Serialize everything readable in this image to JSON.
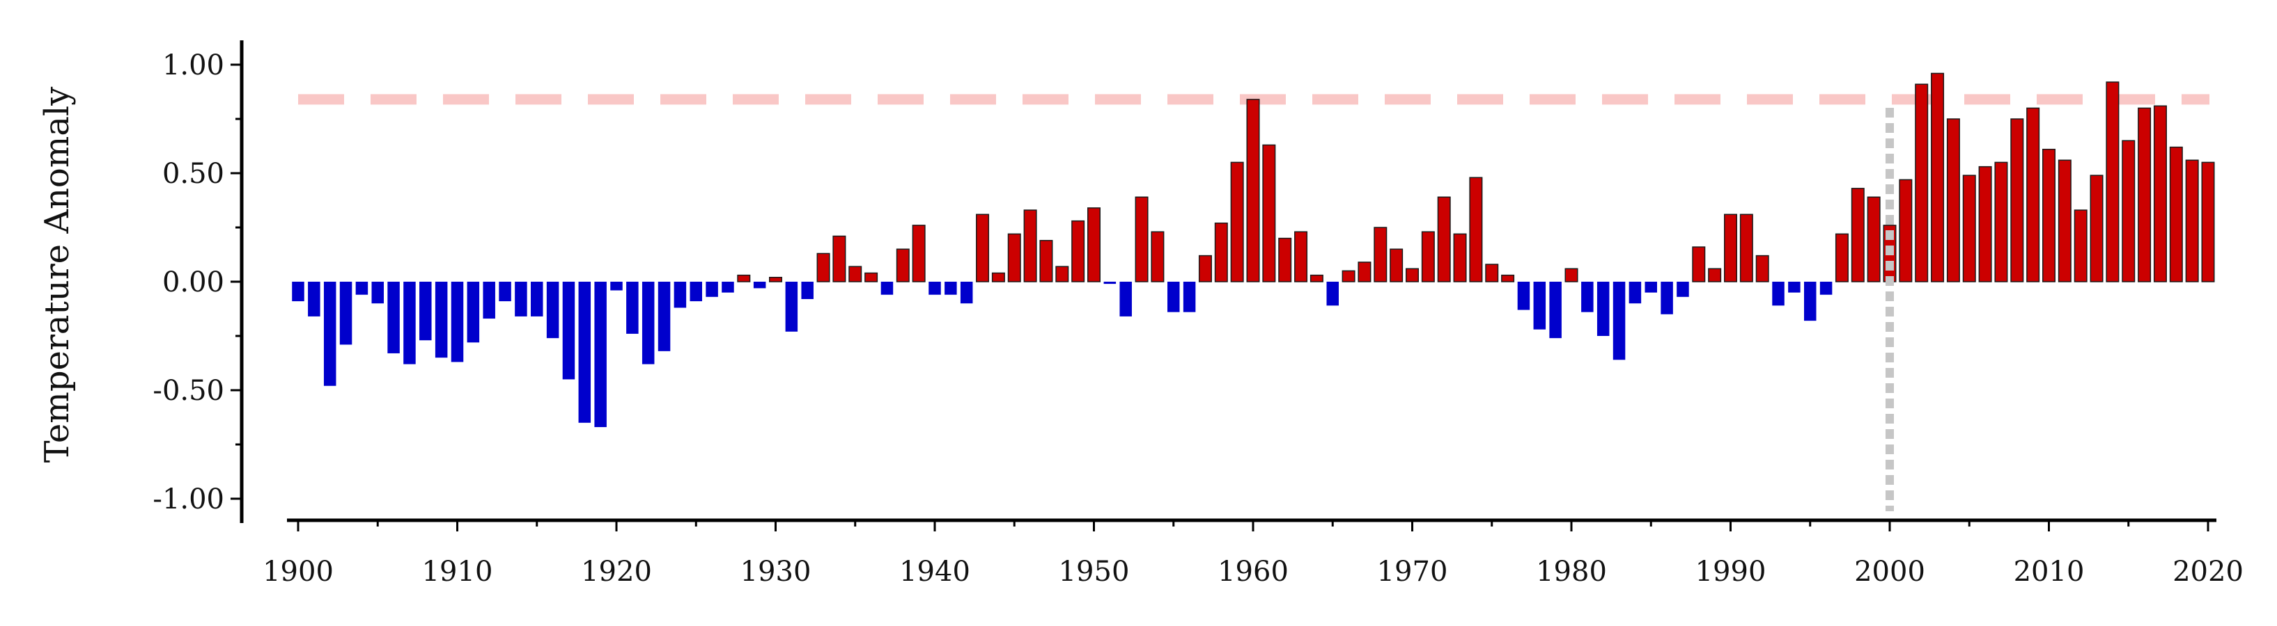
{
  "chart_data": {
    "type": "bar",
    "ylabel": "Temperature Anomaly",
    "xlabel": "",
    "xlim": [
      1899.5,
      2020.5
    ],
    "ylim": [
      -1.1,
      1.1
    ],
    "x_ticks": [
      "1900",
      "1910",
      "1920",
      "1930",
      "1940",
      "1950",
      "1960",
      "1970",
      "1980",
      "1990",
      "2000",
      "2010",
      "2020"
    ],
    "y_ticks": [
      "-1.00",
      "-0.50",
      "0.00",
      "0.50",
      "1.00"
    ],
    "reference_line_y": 0.84,
    "reference_line_color": "#f9c7c6",
    "vertical_marker_x": 2000,
    "vertical_marker_color": "#c6c6c6",
    "positive_color": "#cc0000",
    "negative_color": "#0000cc",
    "years": [
      1900,
      1901,
      1902,
      1903,
      1904,
      1905,
      1906,
      1907,
      1908,
      1909,
      1910,
      1911,
      1912,
      1913,
      1914,
      1915,
      1916,
      1917,
      1918,
      1919,
      1920,
      1921,
      1922,
      1923,
      1924,
      1925,
      1926,
      1927,
      1928,
      1929,
      1930,
      1931,
      1932,
      1933,
      1934,
      1935,
      1936,
      1937,
      1938,
      1939,
      1940,
      1941,
      1942,
      1943,
      1944,
      1945,
      1946,
      1947,
      1948,
      1949,
      1950,
      1951,
      1952,
      1953,
      1954,
      1955,
      1956,
      1957,
      1958,
      1959,
      1960,
      1961,
      1962,
      1963,
      1964,
      1965,
      1966,
      1967,
      1968,
      1969,
      1970,
      1971,
      1972,
      1973,
      1974,
      1975,
      1976,
      1977,
      1978,
      1979,
      1980,
      1981,
      1982,
      1983,
      1984,
      1985,
      1986,
      1987,
      1988,
      1989,
      1990,
      1991,
      1992,
      1993,
      1994,
      1995,
      1996,
      1997,
      1998,
      1999,
      2000,
      2001,
      2002,
      2003,
      2004,
      2005,
      2006,
      2007,
      2008,
      2009,
      2010,
      2011,
      2012,
      2013,
      2014,
      2015,
      2016,
      2017,
      2018,
      2019,
      2020
    ],
    "values": [
      -0.09,
      -0.16,
      -0.48,
      -0.29,
      -0.06,
      -0.1,
      -0.33,
      -0.38,
      -0.27,
      -0.35,
      -0.37,
      -0.28,
      -0.17,
      -0.09,
      -0.16,
      -0.16,
      -0.26,
      -0.45,
      -0.65,
      -0.67,
      -0.04,
      -0.24,
      -0.38,
      -0.32,
      -0.12,
      -0.09,
      -0.07,
      -0.05,
      0.03,
      -0.03,
      0.02,
      -0.23,
      -0.08,
      0.13,
      0.21,
      0.07,
      0.04,
      -0.06,
      0.15,
      0.26,
      -0.06,
      -0.06,
      -0.1,
      0.31,
      0.04,
      0.22,
      0.33,
      0.19,
      0.07,
      0.28,
      0.34,
      -0.01,
      -0.16,
      0.39,
      0.23,
      -0.14,
      -0.14,
      0.12,
      0.27,
      0.55,
      0.84,
      0.63,
      0.2,
      0.23,
      0.03,
      -0.11,
      0.05,
      0.09,
      0.25,
      0.15,
      0.06,
      0.23,
      0.39,
      0.22,
      0.48,
      0.08,
      0.03,
      -0.13,
      -0.22,
      -0.26,
      0.06,
      -0.14,
      -0.25,
      -0.36,
      -0.1,
      -0.05,
      -0.15,
      -0.07,
      0.16,
      0.06,
      0.31,
      0.31,
      0.12,
      -0.11,
      -0.05,
      -0.18,
      -0.06,
      0.22,
      0.43,
      0.39,
      0.26,
      0.47,
      0.91,
      0.96,
      0.75,
      0.49,
      0.53,
      0.55,
      0.75,
      0.8,
      0.61,
      0.56,
      0.33,
      0.49,
      0.92,
      0.65,
      0.8,
      0.81,
      0.62,
      0.56,
      0.55
    ]
  }
}
